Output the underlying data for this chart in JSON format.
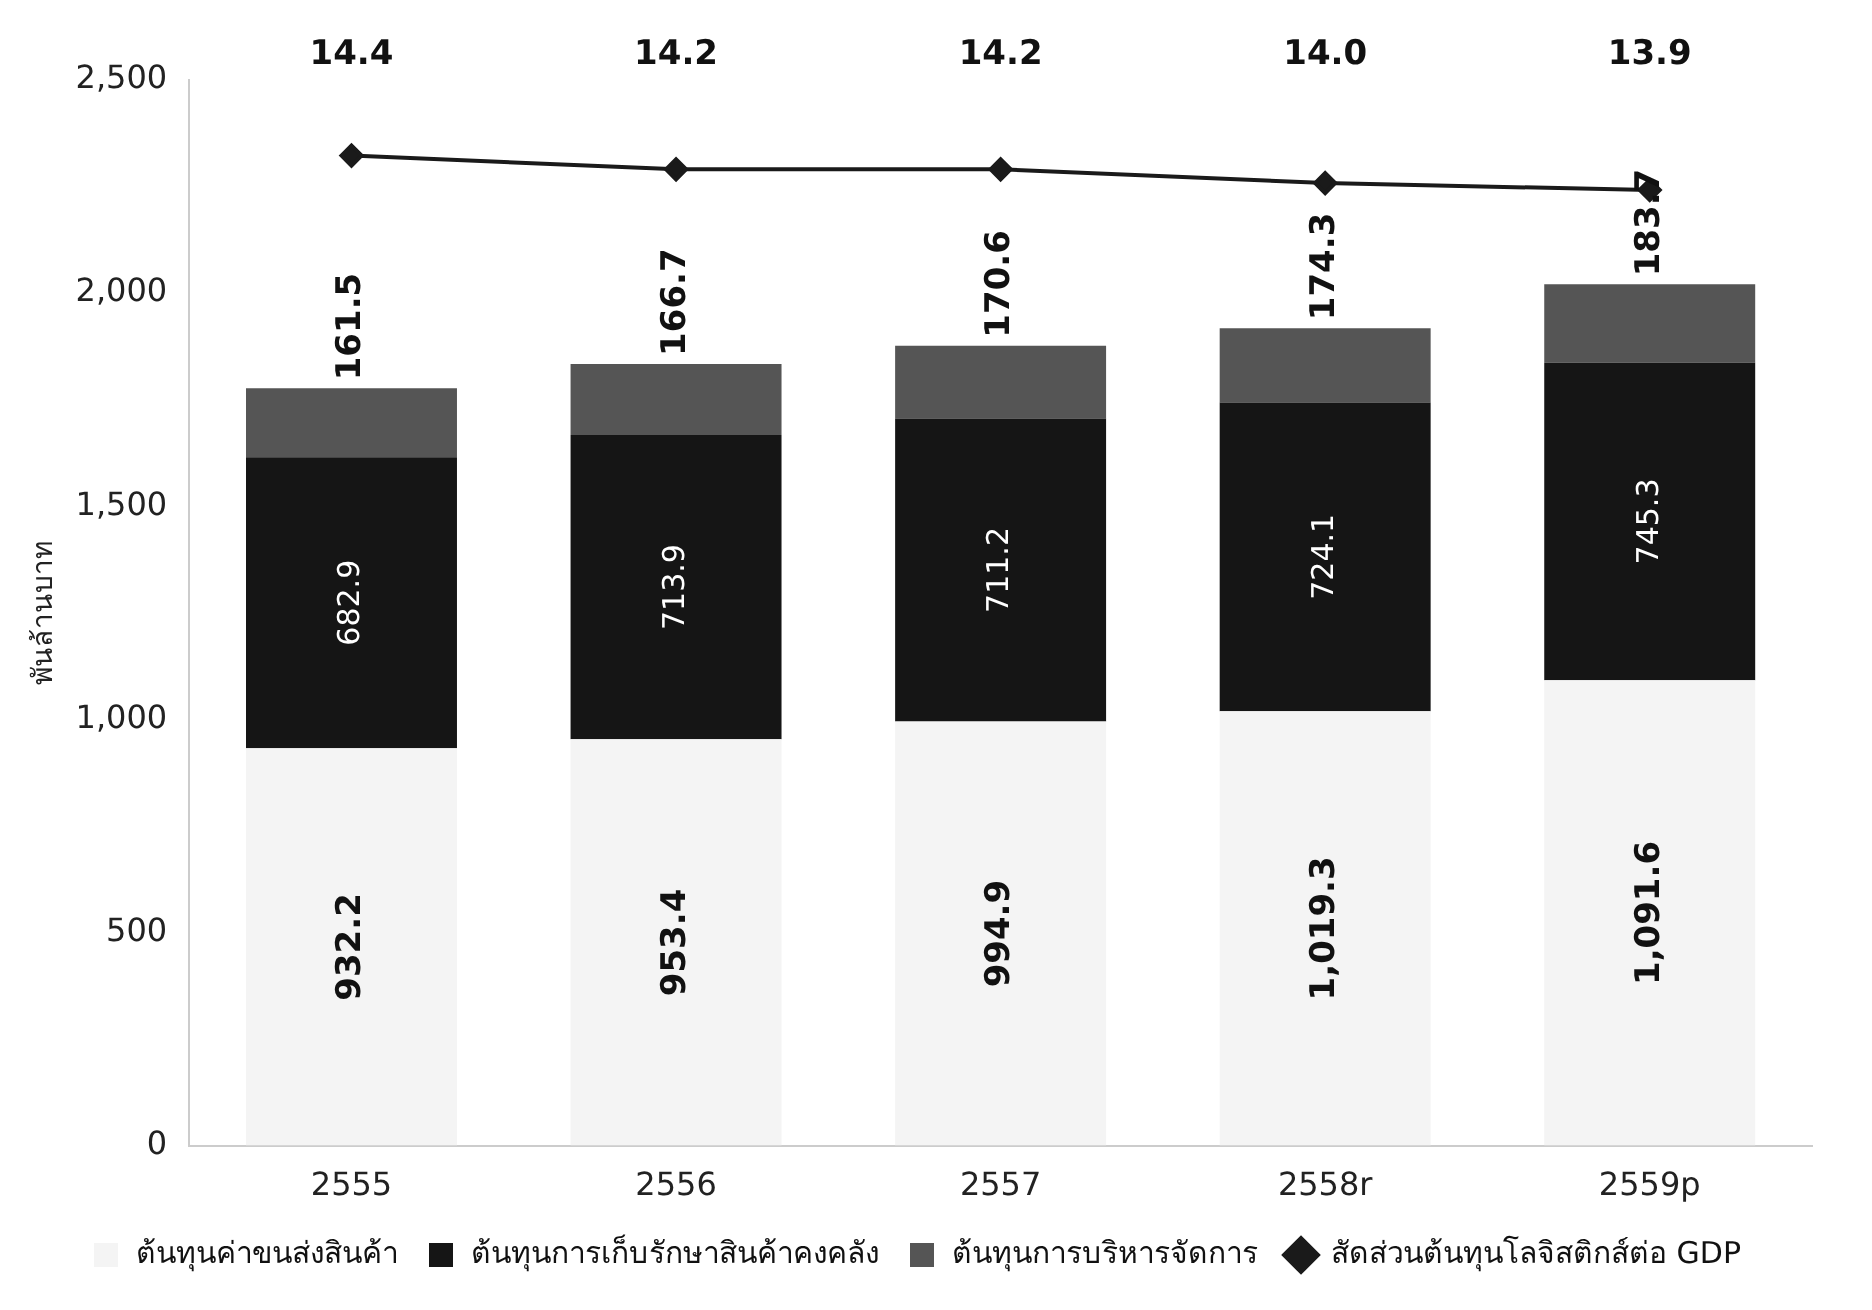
{
  "chart_data": {
    "type": "bar",
    "stacked": true,
    "ylabel": "พันล้านบาท",
    "categories": [
      "2555",
      "2556",
      "2557",
      "2558r",
      "2559p"
    ],
    "ylim": [
      0,
      2500
    ],
    "yticks": [
      {
        "value": 0,
        "label": "0"
      },
      {
        "value": 500,
        "label": "500"
      },
      {
        "value": 1000,
        "label": "1,000"
      },
      {
        "value": 1500,
        "label": "1,500"
      },
      {
        "value": 2000,
        "label": "2,000"
      },
      {
        "value": 2500,
        "label": "2,500"
      }
    ],
    "y2lim": [
      0,
      15.5
    ],
    "series": [
      {
        "name": "ต้นทุนค่าขนส่งสินค้า",
        "color": "#f4f4f4",
        "values": [
          932.2,
          953.4,
          994.9,
          1019.3,
          1091.6
        ],
        "value_labels": [
          "932.2",
          "953.4",
          "994.9",
          "1,019.3",
          "1,091.6"
        ]
      },
      {
        "name": "ต้นทุนการเก็บรักษาสินค้าคงคลัง",
        "color": "#151515",
        "values": [
          682.9,
          713.9,
          711.2,
          724.1,
          745.3
        ]
      },
      {
        "name": "ต้นทุนการบริหารจัดการ",
        "color": "#555555",
        "values": [
          161.5,
          166.7,
          170.6,
          174.3,
          183.7
        ]
      },
      {
        "name": "สัดส่วนต้นทุนโลจิสติกส์ต่อ GDP",
        "type": "line",
        "axis": "y2",
        "color": "#1a1a1a",
        "values": [
          14.4,
          14.2,
          14.2,
          14.0,
          13.9
        ],
        "value_labels": [
          "14.4",
          "14.2",
          "14.2",
          "14.0",
          "13.9"
        ],
        "marker": "diamond",
        "line_style": "solid"
      }
    ],
    "data_labels": true,
    "grid": false,
    "legend": "bottom"
  }
}
